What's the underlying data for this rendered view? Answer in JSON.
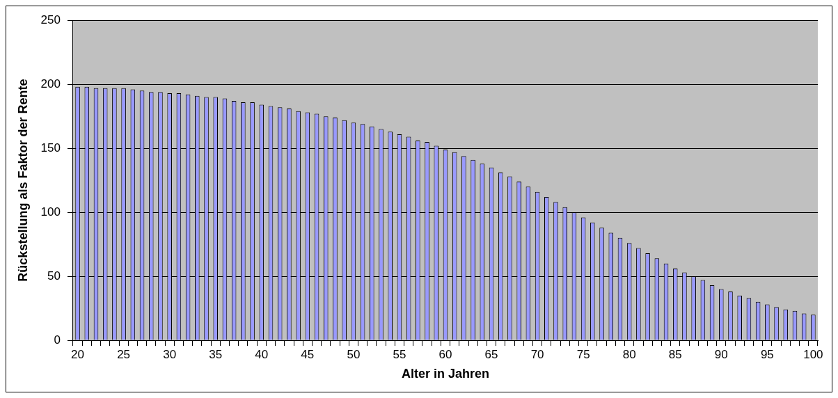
{
  "chart_data": {
    "type": "bar",
    "xlabel": "Alter in Jahren",
    "ylabel": "Rückstellung als Faktor der Rente",
    "categories": [
      "20",
      null,
      null,
      null,
      null,
      "25",
      null,
      null,
      null,
      null,
      "30",
      null,
      null,
      null,
      null,
      "35",
      null,
      null,
      null,
      null,
      "40",
      null,
      null,
      null,
      null,
      "45",
      null,
      null,
      null,
      null,
      "50",
      null,
      null,
      null,
      null,
      "55",
      null,
      null,
      null,
      null,
      "60",
      null,
      null,
      null,
      null,
      "65",
      null,
      null,
      null,
      null,
      "70",
      null,
      null,
      null,
      null,
      "75",
      null,
      null,
      null,
      null,
      "80",
      null,
      null,
      null,
      null,
      "85",
      null,
      null,
      null,
      null,
      "90",
      null,
      null,
      null,
      null,
      "95",
      null,
      null,
      null,
      null,
      "100"
    ],
    "values": [
      198,
      198,
      197,
      197,
      197,
      197,
      196,
      195,
      194,
      194,
      193,
      193,
      192,
      191,
      190,
      190,
      189,
      187,
      186,
      186,
      184,
      183,
      182,
      181,
      179,
      178,
      177,
      175,
      174,
      172,
      170,
      169,
      167,
      165,
      163,
      161,
      159,
      156,
      155,
      152,
      149,
      147,
      144,
      141,
      138,
      135,
      131,
      128,
      124,
      120,
      116,
      112,
      108,
      104,
      100,
      96,
      92,
      88,
      84,
      80,
      76,
      72,
      68,
      64,
      60,
      56,
      53,
      50,
      47,
      43,
      40,
      38,
      35,
      33,
      30,
      28,
      26,
      24,
      23,
      21,
      20
    ],
    "color": "#9999ff",
    "ylim": [
      0,
      250
    ],
    "yticks": [
      0,
      50,
      100,
      150,
      200,
      250
    ],
    "grid": "y",
    "legend": false
  }
}
